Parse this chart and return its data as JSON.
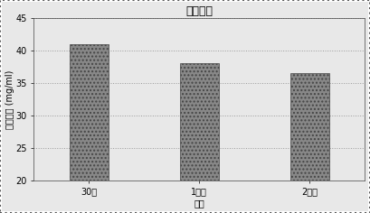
{
  "title": "乾燥時間",
  "xlabel": "時間",
  "ylabel": "結合容量 (mg/ml)",
  "categories": [
    "30分",
    "1時間",
    "2時間"
  ],
  "values": [
    41.0,
    38.0,
    36.5
  ],
  "ylim": [
    20,
    45
  ],
  "yticks": [
    20,
    25,
    30,
    35,
    40,
    45
  ],
  "bar_color": "#888888",
  "bar_hatch": "....",
  "bar_width": 0.35,
  "background_color": "#e8e8e8",
  "plot_bg_color": "#e8e8e8",
  "title_fontsize": 9,
  "axis_fontsize": 7,
  "tick_fontsize": 7,
  "border_color": "#666666"
}
